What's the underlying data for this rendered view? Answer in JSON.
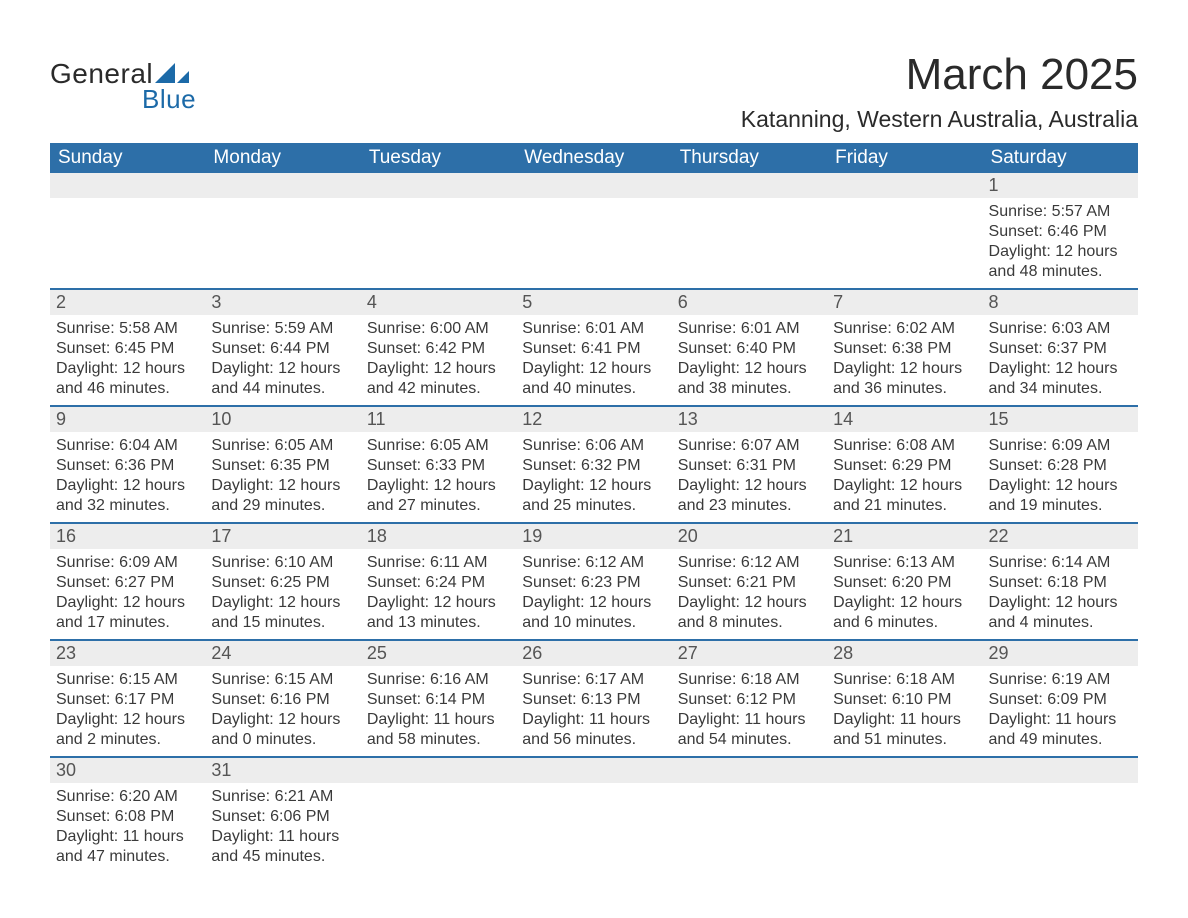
{
  "brand": {
    "word1": "General",
    "word2": "Blue",
    "mark_color": "#1c6aa8",
    "text_color": "#2a2a2a"
  },
  "title": "March 2025",
  "location": "Katanning, Western Australia, Australia",
  "colors": {
    "header_bg": "#2d6fa8",
    "header_text": "#ffffff",
    "daynum_bg": "#ededed",
    "row_divider": "#2d6fa8",
    "body_text": "#3a3a3a",
    "page_bg": "#ffffff"
  },
  "typography": {
    "title_fontsize": 44,
    "location_fontsize": 23,
    "header_fontsize": 19,
    "daynum_fontsize": 18,
    "body_fontsize": 16,
    "font_family": "Arial"
  },
  "day_headers": [
    "Sunday",
    "Monday",
    "Tuesday",
    "Wednesday",
    "Thursday",
    "Friday",
    "Saturday"
  ],
  "weeks": [
    [
      null,
      null,
      null,
      null,
      null,
      null,
      {
        "n": "1",
        "sunrise": "5:57 AM",
        "sunset": "6:46 PM",
        "daylight": "12 hours and 48 minutes."
      }
    ],
    [
      {
        "n": "2",
        "sunrise": "5:58 AM",
        "sunset": "6:45 PM",
        "daylight": "12 hours and 46 minutes."
      },
      {
        "n": "3",
        "sunrise": "5:59 AM",
        "sunset": "6:44 PM",
        "daylight": "12 hours and 44 minutes."
      },
      {
        "n": "4",
        "sunrise": "6:00 AM",
        "sunset": "6:42 PM",
        "daylight": "12 hours and 42 minutes."
      },
      {
        "n": "5",
        "sunrise": "6:01 AM",
        "sunset": "6:41 PM",
        "daylight": "12 hours and 40 minutes."
      },
      {
        "n": "6",
        "sunrise": "6:01 AM",
        "sunset": "6:40 PM",
        "daylight": "12 hours and 38 minutes."
      },
      {
        "n": "7",
        "sunrise": "6:02 AM",
        "sunset": "6:38 PM",
        "daylight": "12 hours and 36 minutes."
      },
      {
        "n": "8",
        "sunrise": "6:03 AM",
        "sunset": "6:37 PM",
        "daylight": "12 hours and 34 minutes."
      }
    ],
    [
      {
        "n": "9",
        "sunrise": "6:04 AM",
        "sunset": "6:36 PM",
        "daylight": "12 hours and 32 minutes."
      },
      {
        "n": "10",
        "sunrise": "6:05 AM",
        "sunset": "6:35 PM",
        "daylight": "12 hours and 29 minutes."
      },
      {
        "n": "11",
        "sunrise": "6:05 AM",
        "sunset": "6:33 PM",
        "daylight": "12 hours and 27 minutes."
      },
      {
        "n": "12",
        "sunrise": "6:06 AM",
        "sunset": "6:32 PM",
        "daylight": "12 hours and 25 minutes."
      },
      {
        "n": "13",
        "sunrise": "6:07 AM",
        "sunset": "6:31 PM",
        "daylight": "12 hours and 23 minutes."
      },
      {
        "n": "14",
        "sunrise": "6:08 AM",
        "sunset": "6:29 PM",
        "daylight": "12 hours and 21 minutes."
      },
      {
        "n": "15",
        "sunrise": "6:09 AM",
        "sunset": "6:28 PM",
        "daylight": "12 hours and 19 minutes."
      }
    ],
    [
      {
        "n": "16",
        "sunrise": "6:09 AM",
        "sunset": "6:27 PM",
        "daylight": "12 hours and 17 minutes."
      },
      {
        "n": "17",
        "sunrise": "6:10 AM",
        "sunset": "6:25 PM",
        "daylight": "12 hours and 15 minutes."
      },
      {
        "n": "18",
        "sunrise": "6:11 AM",
        "sunset": "6:24 PM",
        "daylight": "12 hours and 13 minutes."
      },
      {
        "n": "19",
        "sunrise": "6:12 AM",
        "sunset": "6:23 PM",
        "daylight": "12 hours and 10 minutes."
      },
      {
        "n": "20",
        "sunrise": "6:12 AM",
        "sunset": "6:21 PM",
        "daylight": "12 hours and 8 minutes."
      },
      {
        "n": "21",
        "sunrise": "6:13 AM",
        "sunset": "6:20 PM",
        "daylight": "12 hours and 6 minutes."
      },
      {
        "n": "22",
        "sunrise": "6:14 AM",
        "sunset": "6:18 PM",
        "daylight": "12 hours and 4 minutes."
      }
    ],
    [
      {
        "n": "23",
        "sunrise": "6:15 AM",
        "sunset": "6:17 PM",
        "daylight": "12 hours and 2 minutes."
      },
      {
        "n": "24",
        "sunrise": "6:15 AM",
        "sunset": "6:16 PM",
        "daylight": "12 hours and 0 minutes."
      },
      {
        "n": "25",
        "sunrise": "6:16 AM",
        "sunset": "6:14 PM",
        "daylight": "11 hours and 58 minutes."
      },
      {
        "n": "26",
        "sunrise": "6:17 AM",
        "sunset": "6:13 PM",
        "daylight": "11 hours and 56 minutes."
      },
      {
        "n": "27",
        "sunrise": "6:18 AM",
        "sunset": "6:12 PM",
        "daylight": "11 hours and 54 minutes."
      },
      {
        "n": "28",
        "sunrise": "6:18 AM",
        "sunset": "6:10 PM",
        "daylight": "11 hours and 51 minutes."
      },
      {
        "n": "29",
        "sunrise": "6:19 AM",
        "sunset": "6:09 PM",
        "daylight": "11 hours and 49 minutes."
      }
    ],
    [
      {
        "n": "30",
        "sunrise": "6:20 AM",
        "sunset": "6:08 PM",
        "daylight": "11 hours and 47 minutes."
      },
      {
        "n": "31",
        "sunrise": "6:21 AM",
        "sunset": "6:06 PM",
        "daylight": "11 hours and 45 minutes."
      },
      null,
      null,
      null,
      null,
      null
    ]
  ],
  "labels": {
    "sunrise": "Sunrise: ",
    "sunset": "Sunset: ",
    "daylight": "Daylight: "
  }
}
